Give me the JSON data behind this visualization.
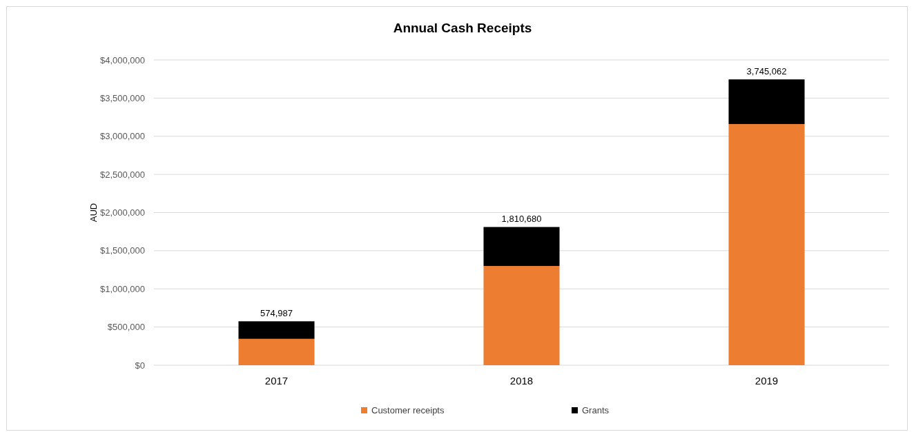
{
  "chart_data": {
    "type": "bar",
    "title": "Annual Cash Receipts",
    "ylabel": "AUD",
    "categories": [
      "2017",
      "2018",
      "2019"
    ],
    "stacked": true,
    "series": [
      {
        "name": "Customer receipts",
        "color": "#ed7d31",
        "values": [
          345000,
          1300000,
          3160000
        ]
      },
      {
        "name": "Grants",
        "color": "#000000",
        "values": [
          229987,
          510680,
          585062
        ]
      }
    ],
    "totals": [
      "574,987",
      "1,810,680",
      "3,745,062"
    ],
    "ylim": [
      0,
      4000000
    ],
    "yticks": [
      {
        "value": 0,
        "label": "$0"
      },
      {
        "value": 500000,
        "label": "$500,000"
      },
      {
        "value": 1000000,
        "label": "$1,000,000"
      },
      {
        "value": 1500000,
        "label": "$1,500,000"
      },
      {
        "value": 2000000,
        "label": "$2,000,000"
      },
      {
        "value": 2500000,
        "label": "$2,500,000"
      },
      {
        "value": 3000000,
        "label": "$3,000,000"
      },
      {
        "value": 3500000,
        "label": "$3,500,000"
      },
      {
        "value": 4000000,
        "label": "$4,000,000"
      }
    ],
    "grid": "y",
    "legend": "bottom"
  }
}
